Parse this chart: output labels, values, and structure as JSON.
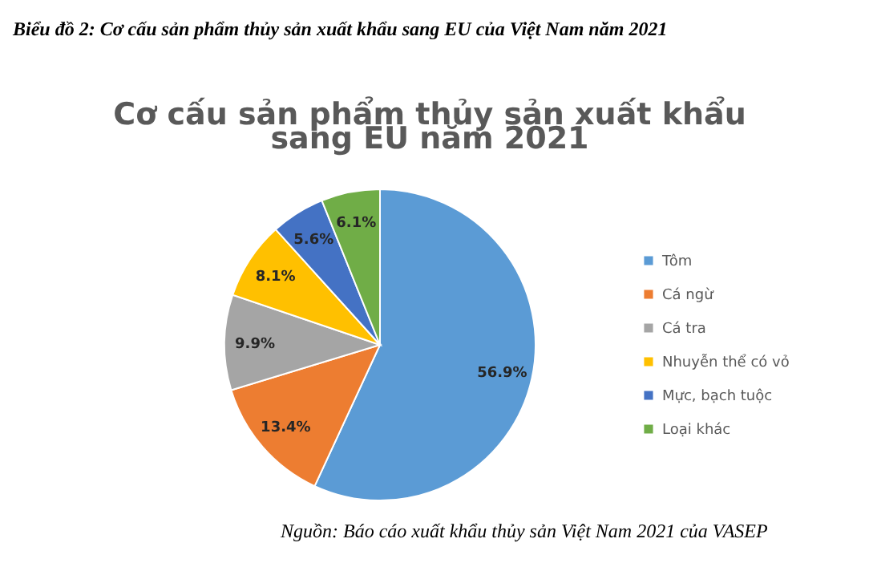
{
  "chart_data": {
    "type": "pie",
    "title": "Cơ cấu sản phẩm thủy sản xuất khẩu sang EU năm 2021",
    "categories": [
      "Tôm",
      "Cá ngừ",
      "Cá tra",
      "Nhuyễn thể có vỏ",
      "Mực, bạch tuộc",
      "Loại khác"
    ],
    "values": [
      56.9,
      13.4,
      9.9,
      8.1,
      5.6,
      6.1
    ],
    "colors": [
      "#5b9bd5",
      "#ed7d31",
      "#a5a5a5",
      "#ffc000",
      "#4472c4",
      "#70ad47"
    ],
    "value_labels": [
      "56.9%",
      "13.4%",
      "9.9%",
      "8.1%",
      "5.6%",
      "6.1%"
    ],
    "legend": "right",
    "annotations": [
      "Biểu đồ 2: Cơ cấu sản phẩm thủy sản xuất khẩu sang EU của Việt Nam năm 2021",
      "Nguồn: Báo cáo xuất khẩu thủy sản Việt Nam 2021 của VASEP"
    ]
  }
}
